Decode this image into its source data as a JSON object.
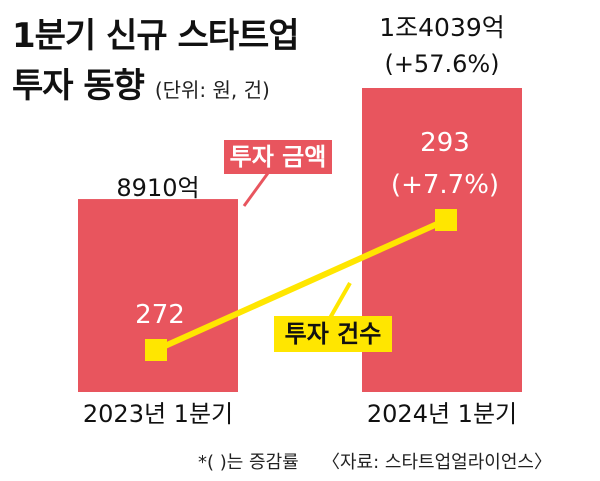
{
  "title_line1": "1분기 신규 스타트업",
  "title_line2": "투자 동향",
  "unit": "(단위: 원, 건)",
  "footnote": "*( )는 증감률",
  "source": "〈자료: 스타트업얼라이언스〉",
  "colors": {
    "bar": "#e8555e",
    "line": "#ffe600",
    "marker": "#ffe600",
    "tag_amount_bg": "#e8555e",
    "tag_count_bg": "#ffe600"
  },
  "chart_data": {
    "type": "bar+line",
    "categories": [
      "2023년 1분기",
      "2024년 1분기"
    ],
    "series": [
      {
        "name": "투자 금액",
        "kind": "bar",
        "values": [
          891000000000,
          1403900000000
        ],
        "labels": [
          "8910억",
          "1조4039억"
        ],
        "change_labels": [
          "",
          "(+57.6%)"
        ]
      },
      {
        "name": "투자 건수",
        "kind": "line",
        "values": [
          272,
          293
        ],
        "labels": [
          "272",
          "293"
        ],
        "change_labels": [
          "",
          "(+7.7%)"
        ]
      }
    ]
  }
}
